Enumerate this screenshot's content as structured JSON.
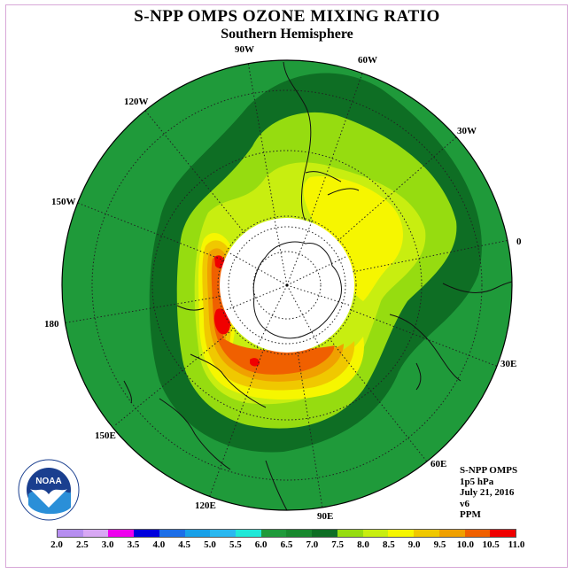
{
  "title": "S-NPP OMPS OZONE MIXING RATIO",
  "subtitle": "Southern Hemisphere",
  "longitude_labels": {
    "w90": "90W",
    "w60": "60W",
    "w30": "30W",
    "lon0": "0",
    "e30": "30E",
    "e60": "60E",
    "e90": "90E",
    "e120": "120E",
    "e150": "150E",
    "lon180": "180",
    "w150": "150W",
    "w120": "120W"
  },
  "info": {
    "instrument": "S-NPP OMPS",
    "level": "1p5 hPa",
    "date": "July 21, 2016",
    "version": "v6",
    "units": "PPM"
  },
  "logo": {
    "text": "NOAA",
    "ring_text": "NATIONAL OCEANIC AND ATMOSPHERIC ADMINISTRATION · U.S. DEPARTMENT OF COMMERCE"
  },
  "colorbar": {
    "ticks": [
      "2.0",
      "2.5",
      "3.0",
      "3.5",
      "4.0",
      "4.5",
      "5.0",
      "5.5",
      "6.0",
      "6.5",
      "7.0",
      "7.5",
      "8.0",
      "8.5",
      "9.0",
      "9.5",
      "10.0",
      "10.5",
      "11.0"
    ],
    "colors": [
      "#b68ef0",
      "#d8a8f4",
      "#ee00ee",
      "#0000dd",
      "#1c6ee8",
      "#18a0e8",
      "#2ab8f0",
      "#20e8d8",
      "#1f9a3a",
      "#18882e",
      "#0e6e24",
      "#96dc10",
      "#c8ee10",
      "#f6f600",
      "#f0c800",
      "#f0a000",
      "#f06000",
      "#f00000",
      "#8b4513"
    ]
  },
  "map": {
    "ocean_color": "#1f9a3a"
  }
}
